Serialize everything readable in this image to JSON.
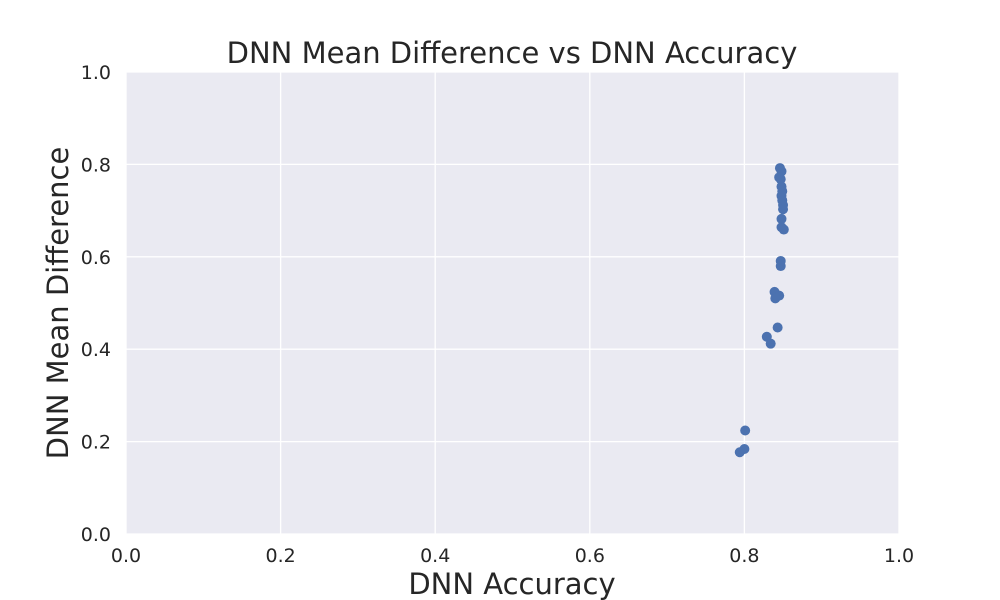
{
  "chart_data": {
    "type": "scatter",
    "title": "DNN Mean Difference vs DNN Accuracy",
    "xlabel": "DNN Accuracy",
    "ylabel": "DNN Mean Difference",
    "xlim": [
      0.0,
      1.0
    ],
    "ylim": [
      0.0,
      1.0
    ],
    "xticks": [
      "0.0",
      "0.2",
      "0.4",
      "0.6",
      "0.8",
      "1.0"
    ],
    "yticks": [
      "0.0",
      "0.2",
      "0.4",
      "0.6",
      "0.8",
      "1.0"
    ],
    "grid": true,
    "background_color": "#eaeaf2",
    "grid_color": "#ffffff",
    "marker_color": "#4c72b0",
    "series": [
      {
        "points": [
          {
            "x": 0.846,
            "y": 0.792
          },
          {
            "x": 0.848,
            "y": 0.785
          },
          {
            "x": 0.845,
            "y": 0.772
          },
          {
            "x": 0.847,
            "y": 0.768
          },
          {
            "x": 0.848,
            "y": 0.752
          },
          {
            "x": 0.849,
            "y": 0.742
          },
          {
            "x": 0.848,
            "y": 0.732
          },
          {
            "x": 0.849,
            "y": 0.722
          },
          {
            "x": 0.85,
            "y": 0.712
          },
          {
            "x": 0.85,
            "y": 0.703
          },
          {
            "x": 0.848,
            "y": 0.682
          },
          {
            "x": 0.848,
            "y": 0.664
          },
          {
            "x": 0.851,
            "y": 0.659
          },
          {
            "x": 0.847,
            "y": 0.591
          },
          {
            "x": 0.847,
            "y": 0.58
          },
          {
            "x": 0.839,
            "y": 0.524
          },
          {
            "x": 0.845,
            "y": 0.516
          },
          {
            "x": 0.84,
            "y": 0.51
          },
          {
            "x": 0.843,
            "y": 0.447
          },
          {
            "x": 0.829,
            "y": 0.427
          },
          {
            "x": 0.834,
            "y": 0.412
          },
          {
            "x": 0.801,
            "y": 0.224
          },
          {
            "x": 0.8,
            "y": 0.184
          },
          {
            "x": 0.794,
            "y": 0.177
          }
        ]
      }
    ]
  }
}
